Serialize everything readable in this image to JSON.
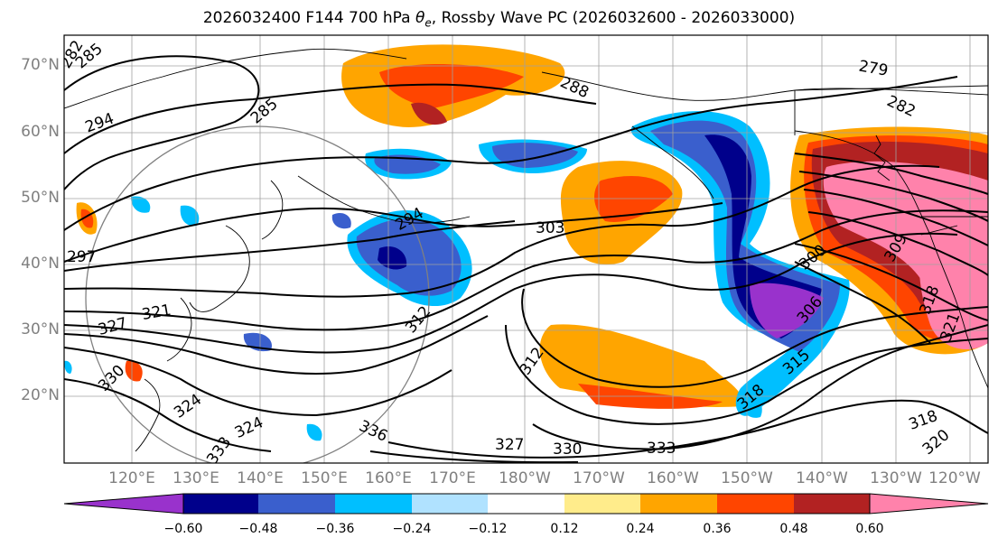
{
  "title": {
    "prefix": "2026032400 F144 700 hPa ",
    "symbol": "θ",
    "subscript": "e",
    "suffix": ", Rossby Wave PC (2026032600 - 2026033000)"
  },
  "lat_labels": [
    "70°N",
    "60°N",
    "50°N",
    "40°N",
    "30°N",
    "20°N"
  ],
  "lon_labels": [
    "120°E",
    "130°E",
    "140°E",
    "150°E",
    "160°E",
    "170°E",
    "180°W",
    "170°W",
    "160°W",
    "150°W",
    "140°W",
    "130°W",
    "120°W"
  ],
  "contour_labels": [
    "282",
    "285",
    "285",
    "288",
    "279",
    "282",
    "294",
    "294",
    "297",
    "303",
    "300",
    "309",
    "306",
    "315",
    "327",
    "321",
    "330",
    "324",
    "312",
    "312",
    "324",
    "333",
    "336",
    "327",
    "330",
    "333",
    "318",
    "321",
    "318",
    "318",
    "320"
  ],
  "colorbar": {
    "ticks": [
      "−0.60",
      "−0.48",
      "−0.36",
      "−0.24",
      "−0.12",
      "0.12",
      "0.24",
      "0.36",
      "0.48",
      "0.60"
    ],
    "colors": [
      "#9932cc",
      "#00008b",
      "#3a5fcd",
      "#00bfff",
      "#b0e2ff",
      "#ffffff",
      "#ffec8b",
      "#ffa500",
      "#ff4500",
      "#b22222",
      "#ff82ab"
    ]
  }
}
